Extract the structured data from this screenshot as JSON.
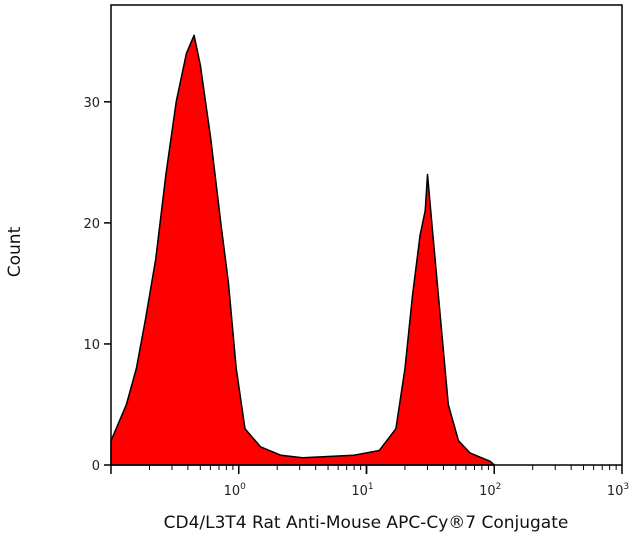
{
  "chart_data": {
    "type": "area",
    "title": "",
    "xlabel": "CD4/L3T4 Rat Anti-Mouse APC-Cy®7 Conjugate",
    "ylabel": "Count",
    "xscale": "log",
    "xlim": [
      0.1,
      1000
    ],
    "ylim": [
      0,
      38
    ],
    "x_ticks": [
      {
        "base": "10",
        "exp": "0",
        "value": 1
      },
      {
        "base": "10",
        "exp": "1",
        "value": 10
      },
      {
        "base": "10",
        "exp": "2",
        "value": 100
      },
      {
        "base": "10",
        "exp": "3",
        "value": 1000
      }
    ],
    "y_ticks": [
      0,
      10,
      20,
      30
    ],
    "grid": false,
    "fill_color": "#ff0000",
    "line_color": "#000000",
    "points": [
      [
        0.1,
        2
      ],
      [
        0.132,
        5
      ],
      [
        0.158,
        8
      ],
      [
        0.186,
        12
      ],
      [
        0.224,
        17
      ],
      [
        0.269,
        24
      ],
      [
        0.324,
        30
      ],
      [
        0.389,
        34
      ],
      [
        0.447,
        35.5
      ],
      [
        0.501,
        33
      ],
      [
        0.603,
        27
      ],
      [
        0.724,
        20
      ],
      [
        0.832,
        15
      ],
      [
        0.955,
        8
      ],
      [
        1.12,
        3
      ],
      [
        1.48,
        1.5
      ],
      [
        2.14,
        0.8
      ],
      [
        3.16,
        0.6
      ],
      [
        5.0,
        0.7
      ],
      [
        7.9,
        0.8
      ],
      [
        12.6,
        1.2
      ],
      [
        17,
        3
      ],
      [
        20,
        8
      ],
      [
        22.9,
        14
      ],
      [
        26.3,
        19
      ],
      [
        28.8,
        21
      ],
      [
        30,
        24
      ],
      [
        33.1,
        19
      ],
      [
        38,
        12
      ],
      [
        43.7,
        5
      ],
      [
        52.5,
        2
      ],
      [
        64.6,
        1
      ],
      [
        93.3,
        0.3
      ],
      [
        100,
        0
      ]
    ]
  }
}
